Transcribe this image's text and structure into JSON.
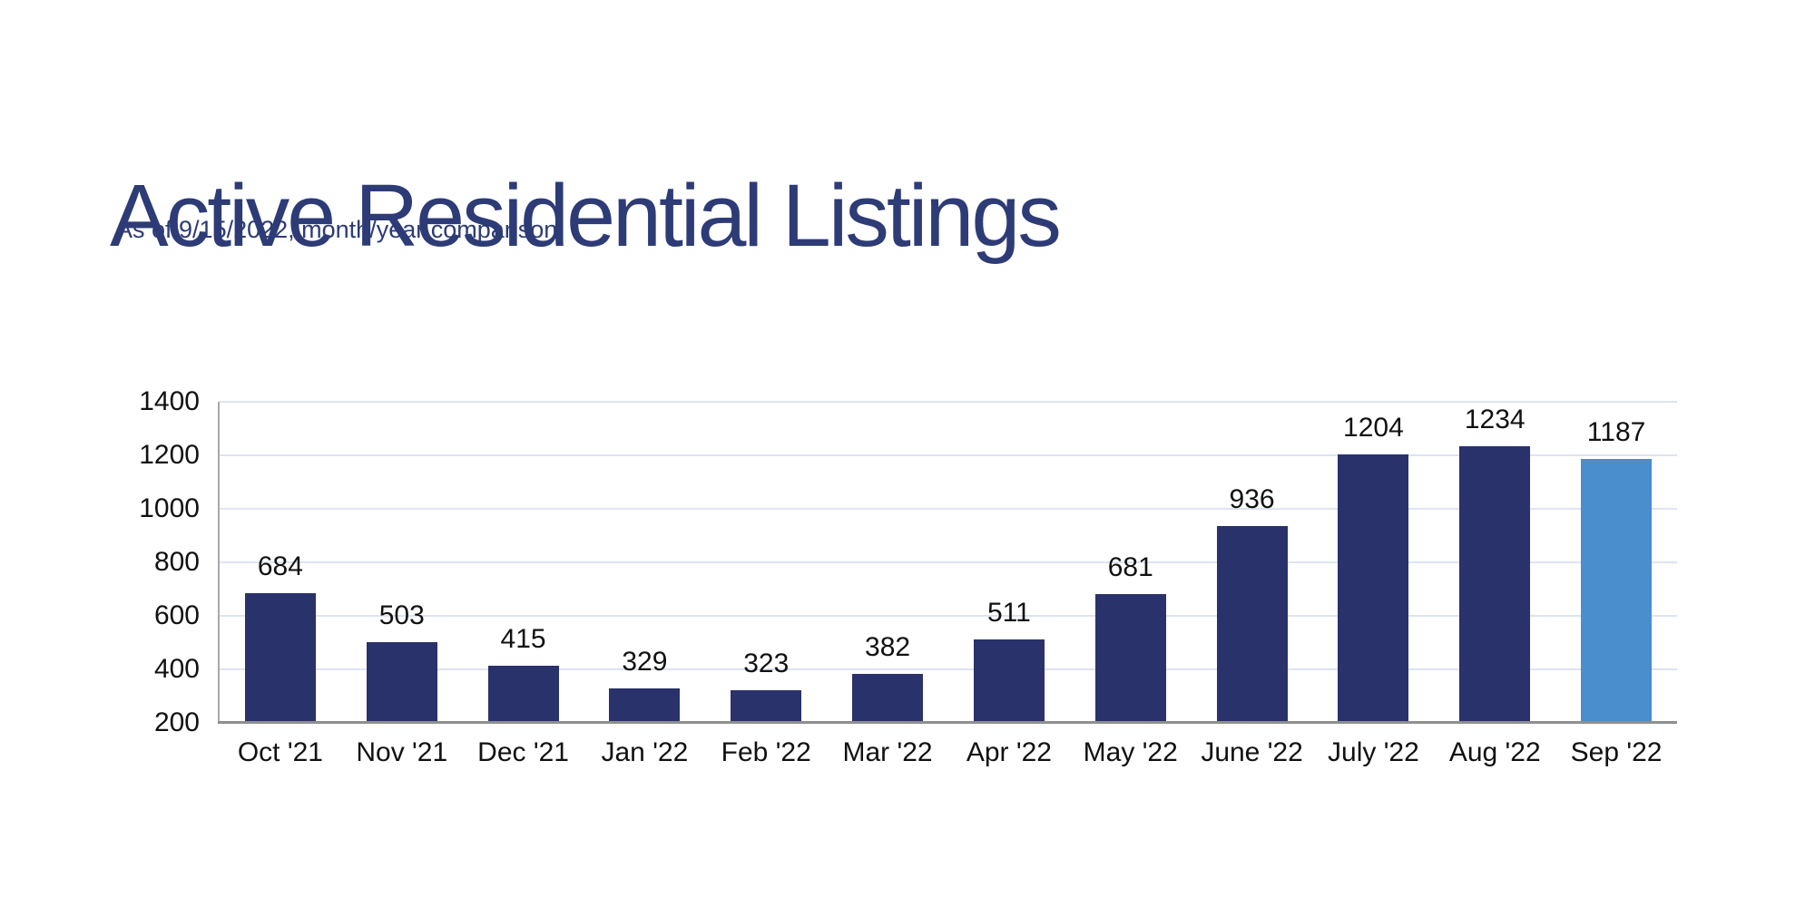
{
  "header": {
    "title": "Active Residential Listings",
    "subtitle": "As of 9/15/2022, month/year comparison",
    "title_color": "#2d3b76"
  },
  "chart_data": {
    "type": "bar",
    "title": "Active Residential Listings",
    "subtitle": "As of 9/15/2022, month/year comparison",
    "categories": [
      "Oct '21",
      "Nov '21",
      "Dec '21",
      "Jan '22",
      "Feb '22",
      "Mar '22",
      "Apr '22",
      "May '22",
      "June '22",
      "July '22",
      "Aug '22",
      "Sep '22"
    ],
    "values": [
      684,
      503,
      415,
      329,
      323,
      382,
      511,
      681,
      936,
      1204,
      1234,
      1187
    ],
    "data_labels": [
      "684",
      "503",
      "415",
      "329",
      "323",
      "382",
      "511",
      "681",
      "936",
      "1204",
      "1234",
      "1187"
    ],
    "xlabel": "",
    "ylabel": "",
    "ylim": [
      200,
      1400
    ],
    "yticks": [
      200,
      400,
      600,
      800,
      1000,
      1200,
      1400
    ],
    "grid": true,
    "legend": false,
    "highlight_index": 11,
    "colors": {
      "bar": "#29326b",
      "highlight": "#4a8ecd",
      "gridline": "#dde4ef",
      "y_axis_line": "#a9a9a9",
      "x_axis_line": "#8f8f8f",
      "label_text": "#111111"
    }
  }
}
